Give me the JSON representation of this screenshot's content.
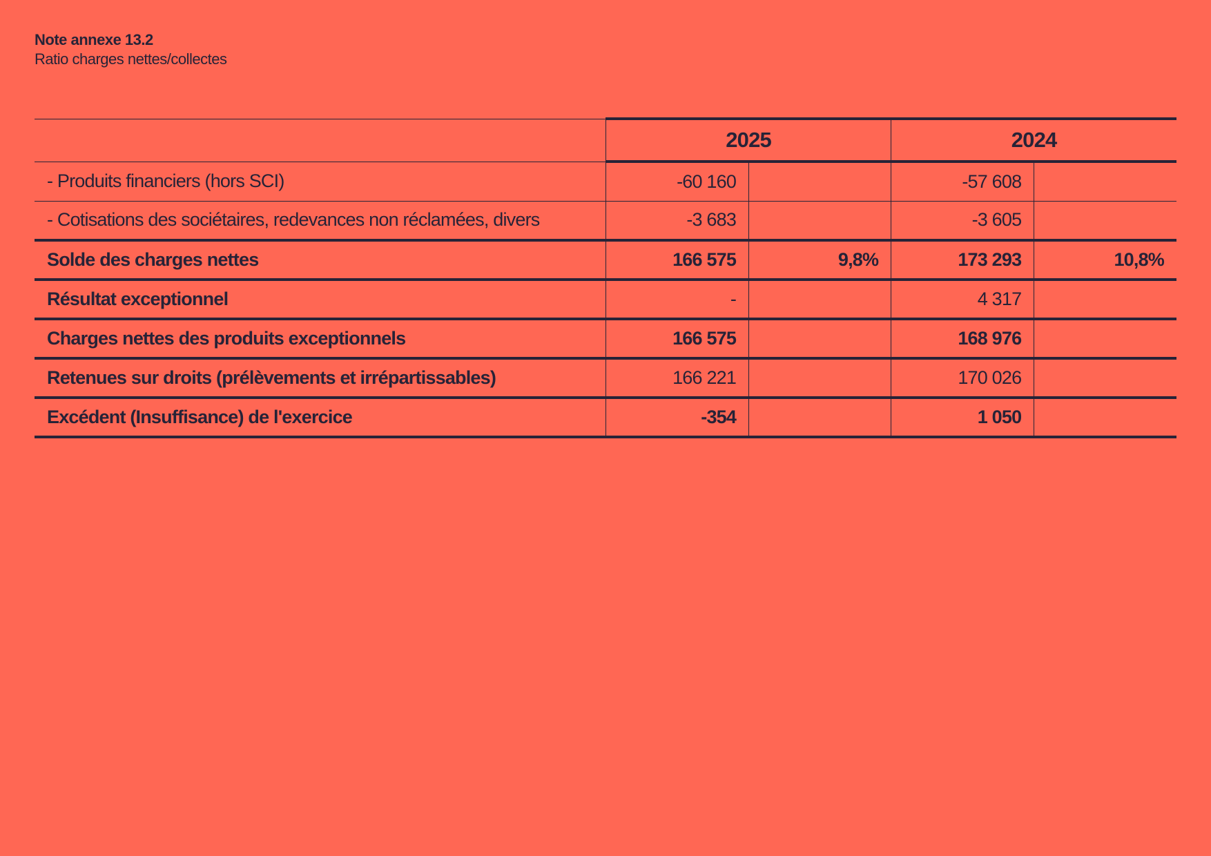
{
  "note": {
    "title": "Note annexe 13.2",
    "subtitle": "Ratio charges nettes/collectes"
  },
  "table": {
    "years": [
      "2025",
      "2024"
    ],
    "rows": [
      {
        "label": "- Produits financiers (hors SCI)",
        "v2025": "-60 160",
        "p2025": "",
        "v2024": "-57 608",
        "p2024": ""
      },
      {
        "label": "- Cotisations des sociétaires, redevances non réclamées, divers",
        "v2025": "-3 683",
        "p2025": "",
        "v2024": "-3 605",
        "p2024": ""
      },
      {
        "label": "Solde des charges nettes",
        "v2025": "166 575",
        "p2025": "9,8%",
        "v2024": "173 293",
        "p2024": "10,8%"
      },
      {
        "label": "Résultat exceptionnel",
        "v2025": "-",
        "p2025": "",
        "v2024": "4 317",
        "p2024": ""
      },
      {
        "label": "Charges nettes des produits exceptionnels",
        "v2025": "166 575",
        "p2025": "",
        "v2024": "168 976",
        "p2024": ""
      },
      {
        "label": "Retenues sur droits (prélèvements et irrépartissables)",
        "v2025": "166 221",
        "p2025": "",
        "v2024": "170 026",
        "p2024": ""
      },
      {
        "label": "Excédent (Insuffisance) de l'exercice",
        "v2025": "-354",
        "p2025": "",
        "v2024": "1 050",
        "p2024": ""
      }
    ]
  }
}
